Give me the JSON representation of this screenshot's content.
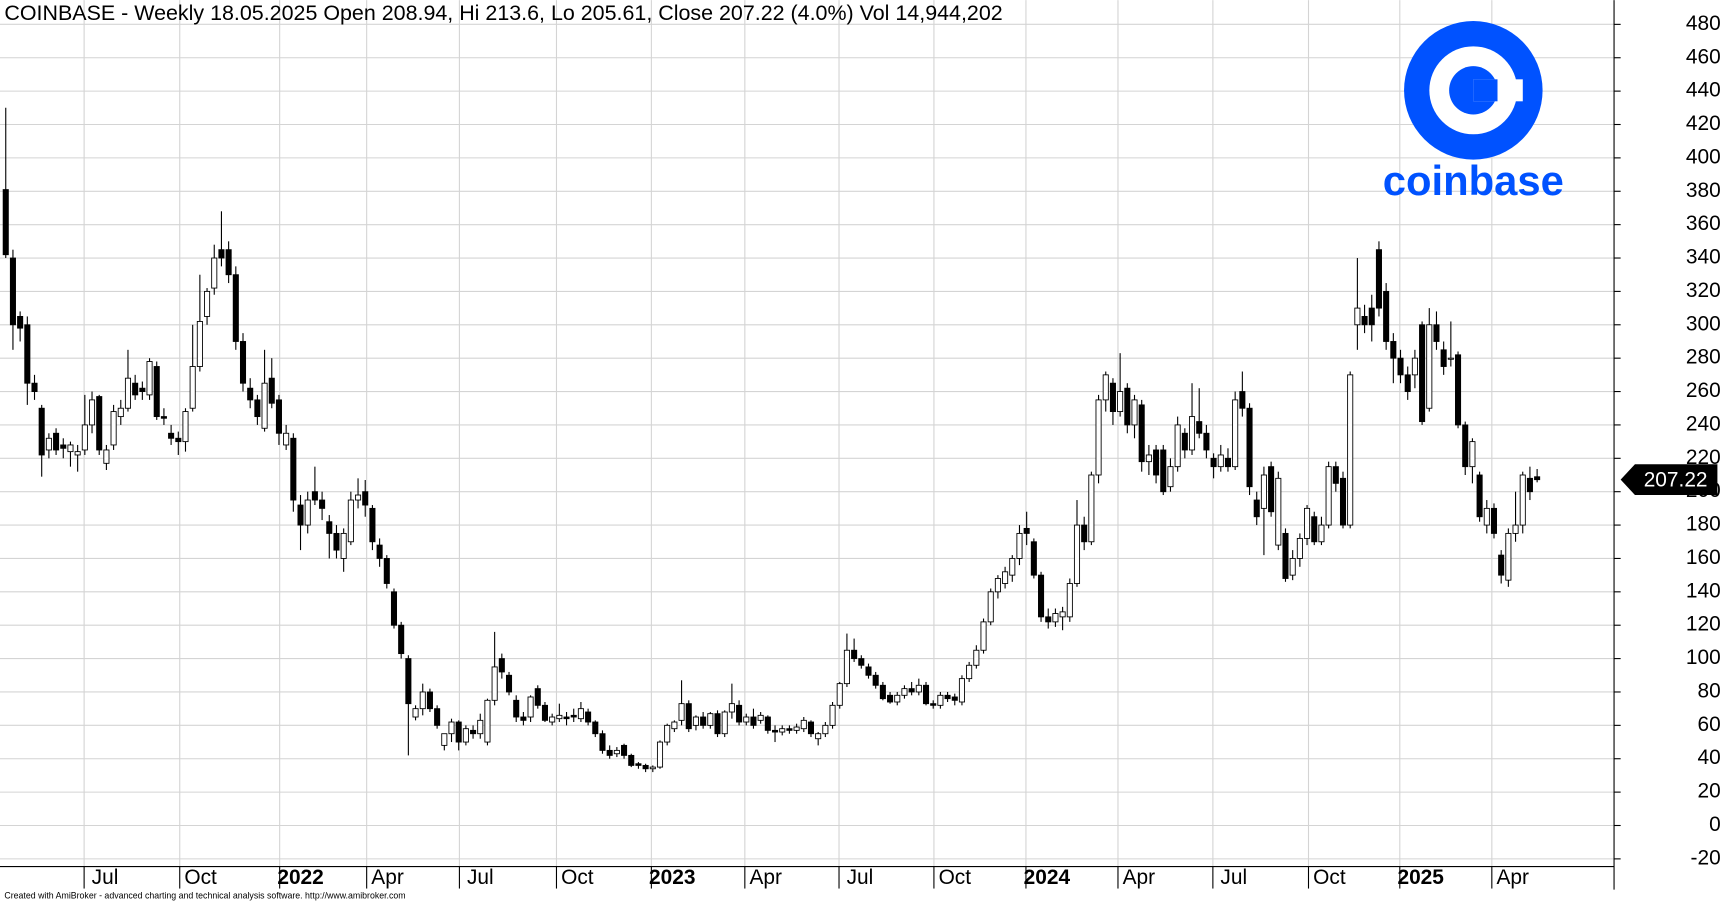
{
  "chart_data": {
    "type": "candlestick",
    "title": "COINBASE - Weekly 18.05.2025 Open 208.94, Hi 213.6, Lo 205.61, Close 207.22 (4.0%) Vol 14,944,202",
    "logo_text": "coinbase",
    "footer": "Created with AmiBroker - advanced charting and technical analysis software. http://www.amibroker.com",
    "up_color": "#ffffff",
    "down_color": "#000000",
    "grid": true,
    "ylim": [
      -24.6,
      494.5
    ],
    "yticks": [
      -20,
      0,
      20,
      40,
      60,
      80,
      100,
      120,
      140,
      160,
      180,
      200,
      220,
      240,
      260,
      280,
      300,
      320,
      340,
      360,
      380,
      400,
      420,
      440,
      460,
      480
    ],
    "xlim": [
      -0.8,
      223.7
    ],
    "xticks": [
      {
        "value": 10.9,
        "label": "Jul"
      },
      {
        "value": 24.2,
        "label": "Oct"
      },
      {
        "value": 38.1,
        "label": "2022"
      },
      {
        "value": 50.2,
        "label": "Apr"
      },
      {
        "value": 63.1,
        "label": "Jul"
      },
      {
        "value": 76.6,
        "label": "Oct"
      },
      {
        "value": 89.8,
        "label": "2023"
      },
      {
        "value": 102.8,
        "label": "Apr"
      },
      {
        "value": 115.9,
        "label": "Jul"
      },
      {
        "value": 129.1,
        "label": "Oct"
      },
      {
        "value": 141.9,
        "label": "2024"
      },
      {
        "value": 154.7,
        "label": "Apr"
      },
      {
        "value": 167.9,
        "label": "Jul"
      },
      {
        "value": 181.2,
        "label": "Oct"
      },
      {
        "value": 193.9,
        "label": "2025"
      },
      {
        "value": 206.7,
        "label": "Apr"
      }
    ],
    "open": [
      381,
      340,
      305,
      300,
      265,
      250,
      225,
      235,
      228,
      224,
      222,
      225,
      240,
      257,
      217,
      228,
      245,
      250,
      265,
      262,
      258,
      275,
      245,
      235,
      232,
      230,
      250,
      275,
      305,
      322,
      345,
      345,
      330,
      290,
      262,
      255,
      238,
      268,
      255,
      228,
      232,
      192,
      180,
      200,
      195,
      182,
      175,
      160,
      170,
      195,
      200,
      190,
      168,
      160,
      140,
      120,
      100,
      65,
      70,
      80,
      70,
      48,
      55,
      62,
      50,
      57,
      55,
      50,
      75,
      100,
      90,
      75,
      65,
      65,
      82,
      72,
      62,
      64,
      65,
      66,
      64,
      68,
      62,
      55,
      45,
      43,
      48,
      42,
      37,
      36,
      34,
      35,
      50,
      58,
      63,
      73,
      60,
      65,
      60,
      67,
      55,
      68,
      72,
      62,
      65,
      63,
      65,
      57,
      56,
      58,
      57,
      58,
      62,
      52,
      55,
      60,
      72,
      85,
      105,
      100,
      95,
      90,
      84,
      78,
      74,
      78,
      82,
      80,
      84,
      73,
      72,
      78,
      77,
      74,
      88,
      96,
      105,
      122,
      140,
      145,
      150,
      160,
      178,
      170,
      150,
      125,
      122,
      125,
      125,
      145,
      180,
      170,
      210,
      255,
      265,
      248,
      262,
      240,
      252,
      218,
      225,
      225,
      203,
      215,
      235,
      225,
      242,
      235,
      220,
      215,
      220,
      215,
      260,
      250,
      195,
      190,
      215,
      168,
      175,
      150,
      160,
      172,
      185,
      170,
      180,
      215,
      208,
      180,
      300,
      305,
      310,
      345,
      320,
      290,
      280,
      270,
      270,
      300,
      250,
      300,
      285,
      280,
      282,
      240,
      215,
      210,
      180,
      190,
      162,
      147,
      175,
      180,
      208,
      208.94
    ],
    "high": [
      430,
      345,
      308,
      305,
      270,
      252,
      235,
      238,
      232,
      230,
      228,
      258,
      260,
      258,
      228,
      252,
      255,
      285,
      270,
      266,
      280,
      278,
      250,
      240,
      236,
      250,
      300,
      330,
      322,
      348,
      368,
      350,
      335,
      295,
      268,
      258,
      285,
      280,
      258,
      240,
      235,
      198,
      200,
      215,
      200,
      186,
      180,
      178,
      200,
      208,
      207,
      192,
      172,
      162,
      142,
      122,
      102,
      72,
      85,
      82,
      72,
      55,
      64,
      63,
      60,
      60,
      67,
      76,
      116,
      103,
      92,
      78,
      68,
      78,
      84,
      74,
      67,
      73,
      68,
      70,
      74,
      70,
      63,
      57,
      48,
      47,
      49,
      43,
      38,
      37,
      36,
      51,
      61,
      63,
      87,
      75,
      66,
      68,
      68,
      69,
      69,
      85,
      75,
      67,
      70,
      68,
      66,
      60,
      60,
      60,
      61,
      65,
      63,
      56,
      62,
      74,
      86,
      115,
      112,
      102,
      97,
      92,
      86,
      80,
      80,
      84,
      86,
      88,
      86,
      75,
      80,
      80,
      79,
      90,
      98,
      108,
      124,
      142,
      150,
      155,
      162,
      180,
      188,
      172,
      152,
      130,
      130,
      131,
      148,
      195,
      185,
      212,
      258,
      272,
      268,
      283,
      265,
      258,
      255,
      228,
      228,
      228,
      220,
      245,
      238,
      265,
      262,
      240,
      223,
      228,
      226,
      260,
      272,
      253,
      200,
      215,
      218,
      212,
      178,
      165,
      175,
      192,
      188,
      185,
      218,
      218,
      212,
      272,
      340,
      312,
      318,
      350,
      325,
      295,
      285,
      275,
      285,
      302,
      310,
      308,
      290,
      302,
      284,
      242,
      232,
      212,
      195,
      193,
      165,
      178,
      200,
      212,
      215,
      213.6
    ],
    "low": [
      340,
      285,
      290,
      252,
      255,
      209,
      220,
      222,
      220,
      215,
      212,
      222,
      235,
      222,
      213,
      225,
      240,
      248,
      255,
      255,
      255,
      243,
      240,
      228,
      222,
      224,
      248,
      272,
      300,
      318,
      335,
      325,
      285,
      260,
      250,
      240,
      236,
      250,
      228,
      225,
      188,
      165,
      175,
      192,
      183,
      160,
      160,
      152,
      168,
      190,
      185,
      165,
      155,
      142,
      118,
      100,
      42,
      63,
      66,
      68,
      58,
      45,
      50,
      45,
      48,
      52,
      52,
      48,
      72,
      88,
      78,
      62,
      60,
      62,
      70,
      62,
      60,
      62,
      60,
      62,
      62,
      60,
      53,
      43,
      40,
      41,
      40,
      35,
      34,
      32,
      32,
      34,
      48,
      56,
      60,
      56,
      57,
      58,
      58,
      53,
      53,
      64,
      60,
      60,
      58,
      61,
      55,
      50,
      54,
      55,
      55,
      56,
      53,
      48,
      53,
      58,
      70,
      83,
      98,
      94,
      88,
      82,
      75,
      73,
      72,
      76,
      78,
      78,
      72,
      70,
      70,
      74,
      72,
      72,
      86,
      94,
      103,
      120,
      136,
      142,
      146,
      156,
      168,
      148,
      122,
      118,
      119,
      117,
      122,
      143,
      165,
      168,
      205,
      248,
      240,
      245,
      235,
      232,
      212,
      210,
      205,
      198,
      200,
      212,
      220,
      222,
      232,
      220,
      208,
      212,
      212,
      213,
      245,
      198,
      180,
      162,
      185,
      165,
      146,
      147,
      155,
      168,
      168,
      168,
      178,
      200,
      178,
      178,
      285,
      295,
      290,
      305,
      285,
      265,
      265,
      255,
      262,
      240,
      248,
      285,
      270,
      275,
      238,
      210,
      205,
      182,
      175,
      172,
      145,
      143,
      170,
      175,
      195,
      205.61
    ],
    "close": [
      342,
      300,
      298,
      265,
      260,
      222,
      232,
      225,
      226,
      228,
      224,
      240,
      255,
      225,
      225,
      248,
      250,
      268,
      258,
      260,
      278,
      245,
      244,
      232,
      230,
      248,
      275,
      302,
      320,
      340,
      340,
      330,
      290,
      265,
      255,
      245,
      265,
      253,
      235,
      235,
      195,
      180,
      195,
      195,
      190,
      175,
      165,
      175,
      195,
      198,
      192,
      170,
      160,
      145,
      120,
      103,
      73,
      70,
      80,
      70,
      60,
      55,
      62,
      50,
      58,
      55,
      63,
      75,
      95,
      92,
      80,
      65,
      63,
      77,
      72,
      63,
      65,
      66,
      64,
      65,
      70,
      62,
      55,
      45,
      42,
      45,
      42,
      36,
      36,
      34,
      35,
      50,
      60,
      62,
      73,
      58,
      65,
      60,
      67,
      55,
      68,
      73,
      62,
      65,
      60,
      66,
      57,
      56,
      58,
      57,
      59,
      63,
      55,
      55,
      60,
      72,
      85,
      105,
      100,
      96,
      90,
      84,
      76,
      74,
      78,
      82,
      80,
      84,
      73,
      72,
      78,
      76,
      75,
      88,
      96,
      105,
      122,
      140,
      148,
      152,
      160,
      175,
      175,
      150,
      125,
      122,
      127,
      128,
      145,
      180,
      170,
      210,
      255,
      270,
      248,
      260,
      240,
      255,
      218,
      222,
      210,
      200,
      215,
      240,
      225,
      245,
      235,
      225,
      215,
      222,
      215,
      255,
      250,
      203,
      185,
      210,
      188,
      208,
      148,
      160,
      172,
      190,
      170,
      180,
      215,
      205,
      180,
      270,
      310,
      300,
      300,
      310,
      290,
      280,
      270,
      260,
      280,
      242,
      300,
      290,
      275,
      280,
      240,
      215,
      230,
      185,
      190,
      175,
      150,
      175,
      180,
      210,
      200,
      207.22
    ]
  }
}
